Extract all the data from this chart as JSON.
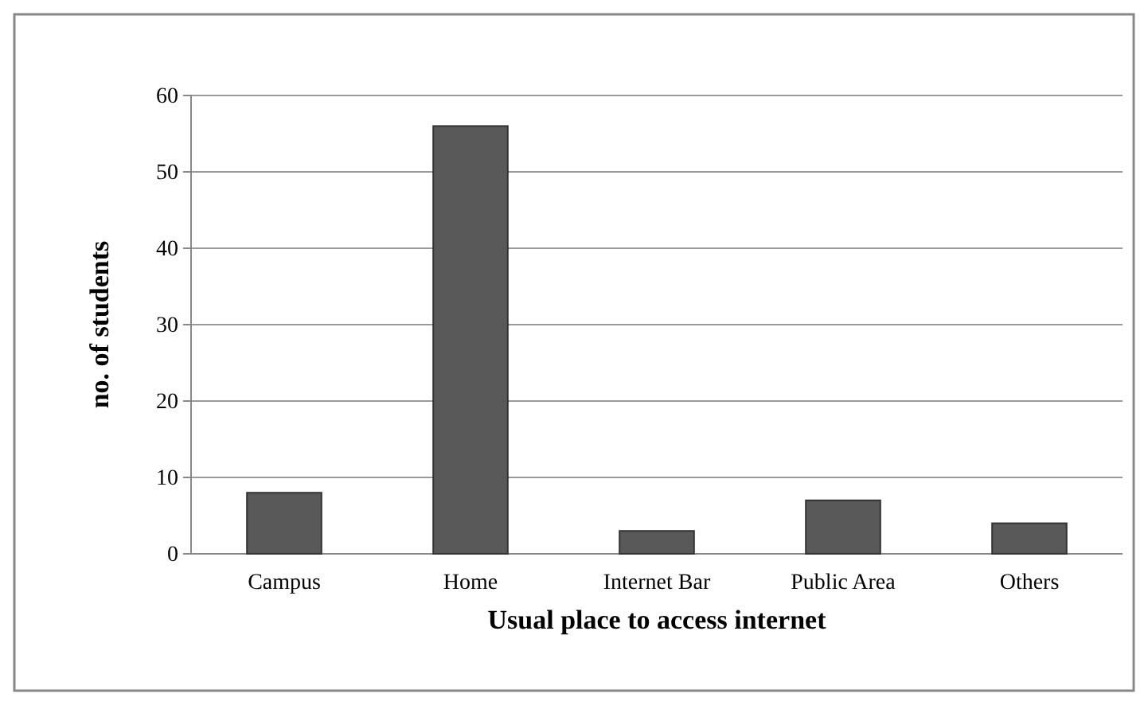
{
  "chart_data": {
    "type": "bar",
    "xlabel": "Usual place to access internet",
    "ylabel": "no. of students",
    "categories": [
      "Campus",
      "Home",
      "Internet Bar",
      "Public Area",
      "Others"
    ],
    "values": [
      8,
      56,
      3,
      7,
      4
    ],
    "color": "#595959",
    "ylim": [
      0,
      60
    ],
    "yticks": [
      0,
      10,
      20,
      30,
      40,
      50,
      60
    ],
    "grid": "y"
  }
}
